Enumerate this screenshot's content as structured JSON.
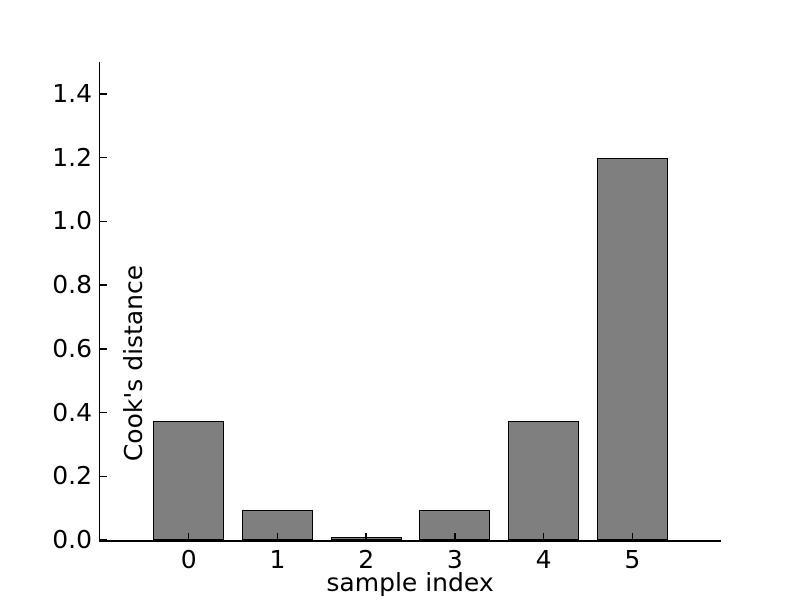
{
  "figure": {
    "background_color": "#ffffff",
    "text_color": "#000000"
  },
  "chart_data": {
    "type": "bar",
    "title": "",
    "xlabel": "sample index",
    "ylabel": "Cook's distance",
    "categories": [
      0,
      1,
      2,
      3,
      4,
      5
    ],
    "values": [
      0.375,
      0.094,
      0.003,
      0.094,
      0.375,
      1.2
    ],
    "xlim": [
      -1,
      6
    ],
    "ylim": [
      0,
      1.5
    ],
    "xticks": {
      "positions": [
        0,
        1,
        2,
        3,
        4,
        5
      ],
      "labels": [
        "0",
        "1",
        "2",
        "3",
        "4",
        "5"
      ]
    },
    "yticks": {
      "positions": [
        0.0,
        0.2,
        0.4,
        0.6,
        0.8,
        1.0,
        1.2,
        1.4
      ],
      "labels": [
        "0.0",
        "0.2",
        "0.4",
        "0.6",
        "0.8",
        "1.0",
        "1.2",
        "1.4"
      ]
    },
    "bar_width": 0.8,
    "bar_color": "#7f7f7f",
    "bar_edge_color": "#000000",
    "axis_color": "#000000",
    "tick_direction": "in",
    "grid": false,
    "legend": null
  }
}
